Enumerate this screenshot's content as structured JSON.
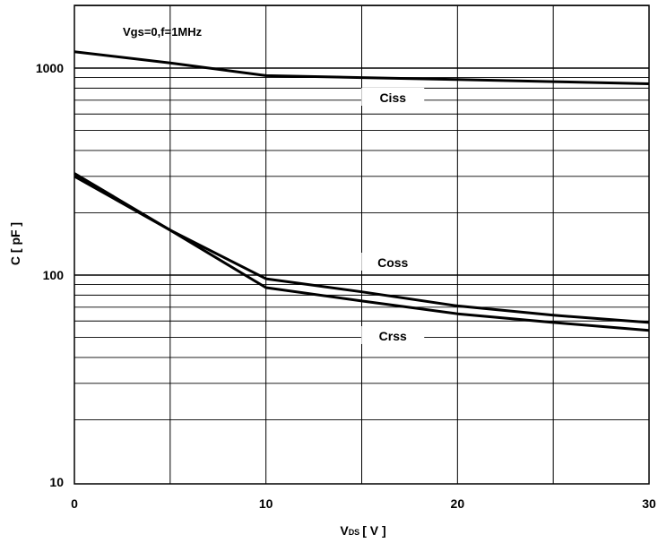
{
  "chart_data": {
    "type": "line",
    "xlabel_main": "V",
    "xlabel_sub": "DS",
    "xlabel_unit": "[ V ]",
    "ylabel": "C [ pF ]",
    "annotation": "Vgs=0,f=1MHz",
    "xlim": [
      0,
      30
    ],
    "ylim": [
      10,
      2000
    ],
    "y_scale": "log",
    "grid": true,
    "x_ticks": [
      0,
      10,
      20,
      30
    ],
    "x_tick_labels": [
      "0",
      "10",
      "20",
      "30"
    ],
    "y_ticks": [
      10,
      100,
      1000
    ],
    "y_tick_labels": [
      "10",
      "100",
      "1000"
    ],
    "series": [
      {
        "name": "Ciss",
        "label_at": 17,
        "points": [
          [
            0,
            1200
          ],
          [
            5,
            1060
          ],
          [
            10,
            920
          ],
          [
            15,
            900
          ],
          [
            20,
            880
          ],
          [
            25,
            860
          ],
          [
            30,
            840
          ]
        ]
      },
      {
        "name": "Coss",
        "label_at": 17,
        "points": [
          [
            0,
            310
          ],
          [
            5,
            165
          ],
          [
            10,
            96
          ],
          [
            15,
            83
          ],
          [
            20,
            71
          ],
          [
            25,
            64
          ],
          [
            30,
            59
          ]
        ]
      },
      {
        "name": "Crss",
        "label_at": 17,
        "points": [
          [
            0,
            300
          ],
          [
            5,
            165
          ],
          [
            10,
            87
          ],
          [
            15,
            75
          ],
          [
            20,
            65
          ],
          [
            25,
            59
          ],
          [
            30,
            54
          ]
        ]
      }
    ]
  }
}
